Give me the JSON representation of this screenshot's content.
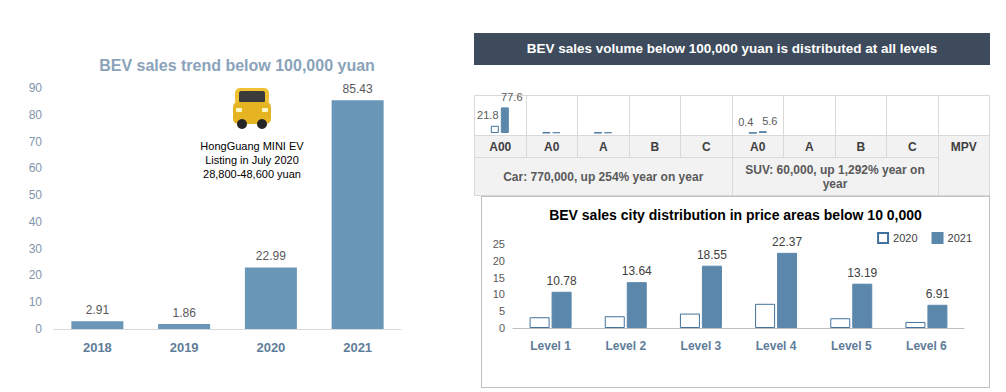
{
  "chart_data": [
    {
      "type": "bar",
      "title": "BEV sales trend below 100,000 yuan",
      "categories": [
        "2018",
        "2019",
        "2020",
        "2021"
      ],
      "values": [
        2.91,
        1.86,
        22.99,
        85.43
      ],
      "color": "#6a96b8",
      "ylim": [
        0,
        90
      ],
      "yticks": [
        0,
        10,
        20,
        30,
        40,
        50,
        60,
        70,
        80,
        90
      ],
      "grid": false,
      "data_labels": true,
      "annotation": [
        "HongGuang MINI EV",
        "Listing in July 2020",
        "28,800-48,600 yuan"
      ]
    },
    {
      "type": "bar",
      "title": "BEV sales volume below 100,000 yuan is distributed at all levels",
      "groups": [
        {
          "label": "Car: 770,000, up 254% year on year",
          "categories": [
            "A00",
            "A0",
            "A",
            "B",
            "C"
          ]
        },
        {
          "label": "SUV: 60,000, up 1,292% year on year",
          "categories": [
            "A0",
            "A",
            "B",
            "C"
          ]
        },
        {
          "label": "MPV",
          "categories": [
            null
          ]
        }
      ],
      "series": [
        {
          "color": "#ffffff",
          "values": [
            21.8,
            1.5,
            1.2,
            null,
            null,
            0.4,
            null,
            null,
            null,
            null
          ],
          "value_labels": [
            "21.8",
            null,
            null,
            null,
            null,
            "0.4",
            null,
            null,
            null,
            null
          ]
        },
        {
          "color": "#5b87ab",
          "values": [
            77.6,
            2.0,
            1.8,
            null,
            null,
            5.6,
            null,
            null,
            null,
            null
          ],
          "value_labels": [
            "77.6",
            null,
            null,
            null,
            null,
            "5.6",
            null,
            null,
            null,
            null
          ]
        }
      ],
      "ylim": [
        0,
        100
      ],
      "tick_labels": false,
      "grid": false,
      "data_labels": true
    },
    {
      "type": "bar",
      "title": "BEV sales city distribution in price areas below 10 0,000",
      "categories": [
        "Level 1",
        "Level 2",
        "Level 3",
        "Level 4",
        "Level 5",
        "Level 6"
      ],
      "series": [
        {
          "name": "2020",
          "color": "#ffffff",
          "values": [
            3.2,
            3.5,
            4.3,
            7.2,
            2.9,
            1.8
          ],
          "data_labels": false
        },
        {
          "name": "2021",
          "color": "#5b87ab",
          "values": [
            10.78,
            13.64,
            18.55,
            22.37,
            13.19,
            6.91
          ],
          "data_labels": true
        }
      ],
      "ylim": [
        0,
        25
      ],
      "yticks": [
        0,
        5,
        10,
        15,
        20,
        25
      ],
      "grid": false,
      "legend": "upper right"
    }
  ]
}
